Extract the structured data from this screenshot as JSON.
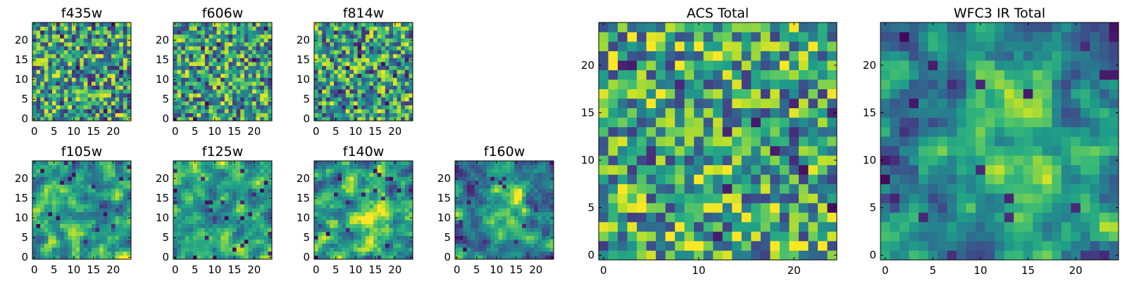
{
  "chart_data": {
    "type": "heatmap",
    "colormap": "viridis",
    "grid": false,
    "axis_range_x": [
      -0.5,
      24.5
    ],
    "axis_range_y": [
      -0.5,
      24.5
    ],
    "pixels_per_side": 25,
    "panels": [
      {
        "title": "f435w",
        "xticks": [
          0,
          5,
          10,
          15,
          20
        ],
        "yticks": [
          0,
          5,
          10,
          15,
          20
        ],
        "texture": "noise",
        "smooth": 0,
        "level": 0.55
      },
      {
        "title": "f606w",
        "xticks": [
          0,
          5,
          10,
          15,
          20
        ],
        "yticks": [
          0,
          5,
          10,
          15,
          20
        ],
        "texture": "noise",
        "smooth": 0,
        "level": 0.55
      },
      {
        "title": "f814w",
        "xticks": [
          0,
          5,
          10,
          15,
          20
        ],
        "yticks": [
          0,
          5,
          10,
          15,
          20
        ],
        "texture": "noise",
        "smooth": 0,
        "level": 0.55
      },
      {
        "title": "f105w",
        "xticks": [
          0,
          5,
          10,
          15,
          20
        ],
        "yticks": [
          0,
          5,
          10,
          15,
          20
        ],
        "texture": "correlated noise",
        "smooth": 1,
        "level": 0.6
      },
      {
        "title": "f125w",
        "xticks": [
          0,
          5,
          10,
          15,
          20
        ],
        "yticks": [
          0,
          5,
          10,
          15,
          20
        ],
        "texture": "correlated noise",
        "smooth": 1,
        "level": 0.6
      },
      {
        "title": "f140w",
        "xticks": [
          0,
          5,
          10,
          15,
          20
        ],
        "yticks": [
          0,
          5,
          10,
          15,
          20
        ],
        "texture": "correlated noise with central source",
        "smooth": 1,
        "level": 0.6
      },
      {
        "title": "f160w",
        "xticks": [
          0,
          5,
          10,
          15,
          20
        ],
        "yticks": [
          0,
          5,
          10,
          15,
          20
        ],
        "texture": "correlated noise with central source",
        "smooth": 1,
        "level": 0.55
      },
      {
        "title": "ACS Total",
        "xticks": [
          0,
          10,
          20
        ],
        "yticks": [
          0,
          5,
          10,
          15,
          20
        ],
        "texture": "noise",
        "smooth": 0,
        "level": 0.6
      },
      {
        "title": "WFC3 IR Total",
        "xticks": [
          0,
          5,
          10,
          15,
          20
        ],
        "yticks": [
          0,
          5,
          10,
          15,
          20
        ],
        "texture": "correlated noise with central source",
        "smooth": 1,
        "level": 0.55
      }
    ]
  }
}
